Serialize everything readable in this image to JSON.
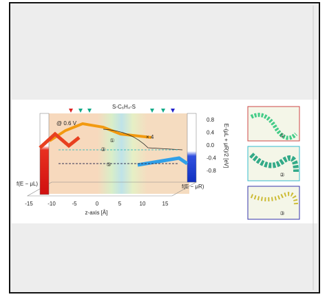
{
  "figure": {
    "title": "S-C₆H₄-S",
    "bias": "@ 0.6 V",
    "scale_note": "× 4",
    "energy_ticks": [
      "0.8",
      "0.4",
      "0.0",
      "-0.4",
      "-0.8"
    ],
    "energy_label": "E-(μL + μR)/2 [eV]",
    "left_occupation": "f(E − μL)",
    "right_occupation": "f(E − μR)",
    "z_ticks": [
      "-15",
      "-10",
      "-5",
      "0",
      "5",
      "10",
      "15"
    ],
    "z_label": "z-axis [Å]",
    "panel_labels": [
      "①",
      "②",
      "③"
    ],
    "inset_labels": [
      "①",
      "②",
      "③"
    ]
  }
}
